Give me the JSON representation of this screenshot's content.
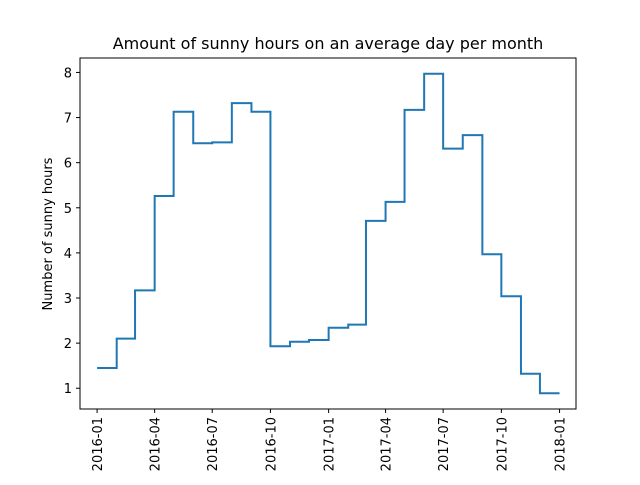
{
  "chart_data": {
    "type": "line",
    "step": "post",
    "title": "Amount of sunny hours on an average day per month",
    "xlabel": "",
    "ylabel": "Number of sunny hours",
    "x": [
      "2016-01",
      "2016-02",
      "2016-03",
      "2016-04",
      "2016-05",
      "2016-06",
      "2016-07",
      "2016-08",
      "2016-09",
      "2016-10",
      "2016-11",
      "2016-12",
      "2017-01",
      "2017-02",
      "2017-03",
      "2017-04",
      "2017-05",
      "2017-06",
      "2017-07",
      "2017-08",
      "2017-09",
      "2017-10",
      "2017-11",
      "2017-12",
      "2018-01"
    ],
    "series": [
      {
        "values": [
          1.45,
          2.1,
          3.17,
          5.26,
          7.13,
          6.43,
          6.45,
          7.32,
          7.13,
          1.93,
          2.03,
          2.07,
          2.34,
          2.41,
          4.71,
          5.13,
          7.17,
          7.97,
          6.31,
          6.61,
          3.97,
          3.04,
          1.32,
          0.89,
          0.89
        ],
        "color": "#1f77b4"
      }
    ],
    "xticks": [
      "2016-01",
      "2016-04",
      "2016-07",
      "2016-10",
      "2017-01",
      "2017-04",
      "2017-07",
      "2017-10",
      "2018-01"
    ],
    "yticks": [
      1,
      2,
      3,
      4,
      5,
      6,
      7,
      8
    ],
    "ylim": [
      0.54,
      8.32
    ],
    "xlim": [
      "2015-12-05",
      "2018-01-27"
    ],
    "grid": false
  }
}
